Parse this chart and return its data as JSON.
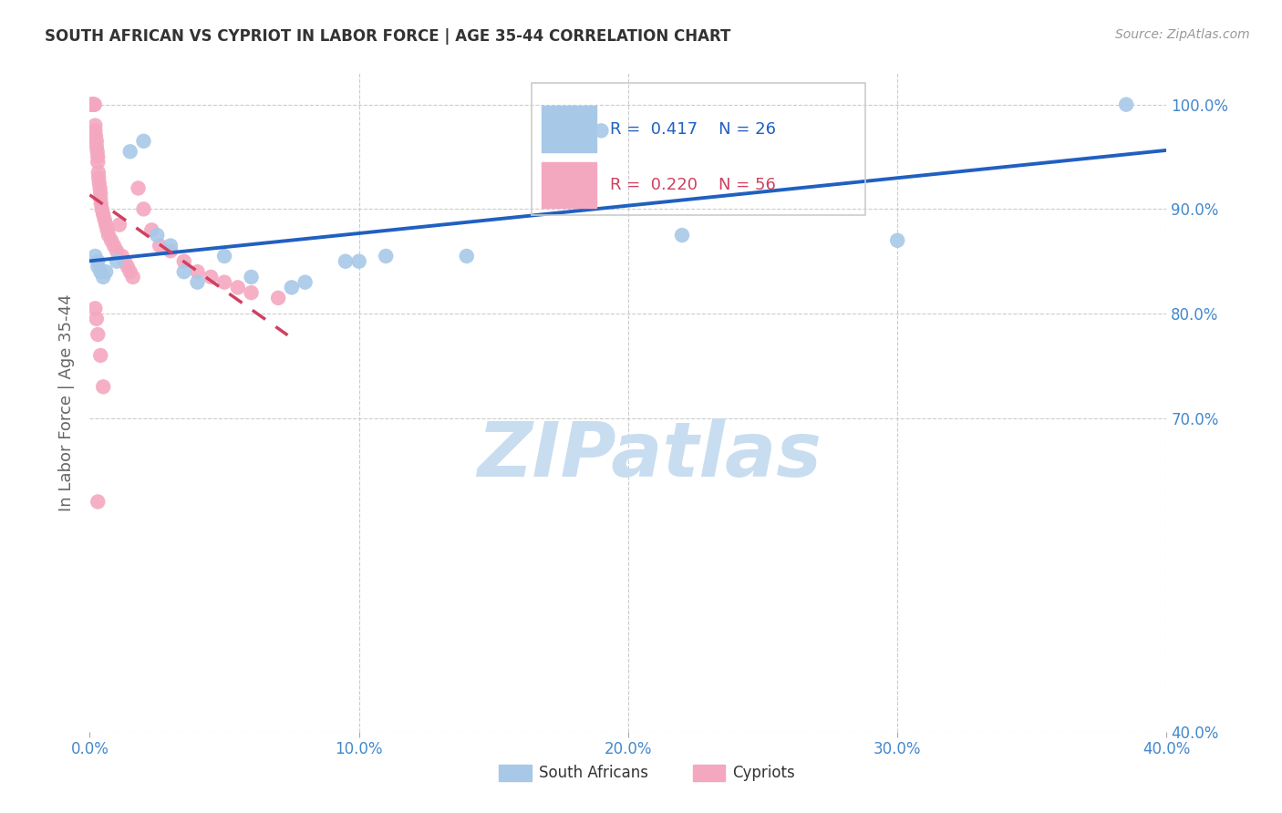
{
  "title": "SOUTH AFRICAN VS CYPRIOT IN LABOR FORCE | AGE 35-44 CORRELATION CHART",
  "source": "Source: ZipAtlas.com",
  "ylabel": "In Labor Force | Age 35-44",
  "legend_blue_r": "0.417",
  "legend_blue_n": "26",
  "legend_pink_r": "0.220",
  "legend_pink_n": "56",
  "xlim": [
    0.0,
    40.0
  ],
  "ylim": [
    40.0,
    103.0
  ],
  "xtick_vals": [
    0.0,
    10.0,
    20.0,
    30.0,
    40.0
  ],
  "ytick_right_vals": [
    100.0,
    90.0,
    80.0,
    70.0,
    40.0
  ],
  "blue_scatter_color": "#a8c8e8",
  "pink_scatter_color": "#f4a8c0",
  "blue_line_color": "#2060c0",
  "pink_line_color": "#d04060",
  "tick_color": "#4488cc",
  "watermark_color": "#c8ddf0",
  "sa_x": [
    0.2,
    0.3,
    0.3,
    0.4,
    0.5,
    0.6,
    1.0,
    1.5,
    2.0,
    2.5,
    3.0,
    3.5,
    4.0,
    5.0,
    6.0,
    7.5,
    8.0,
    9.5,
    10.0,
    11.0,
    14.0,
    17.5,
    19.0,
    22.0,
    30.0,
    38.5
  ],
  "sa_y": [
    85.5,
    84.5,
    85.0,
    84.0,
    83.5,
    84.0,
    85.0,
    95.5,
    96.5,
    87.5,
    86.5,
    84.0,
    83.0,
    85.5,
    83.5,
    82.5,
    83.0,
    85.0,
    85.0,
    85.5,
    85.5,
    96.5,
    97.5,
    87.5,
    87.0,
    100.0
  ],
  "cy_x": [
    0.05,
    0.08,
    0.1,
    0.12,
    0.13,
    0.15,
    0.15,
    0.18,
    0.2,
    0.2,
    0.22,
    0.25,
    0.25,
    0.28,
    0.3,
    0.3,
    0.32,
    0.33,
    0.35,
    0.38,
    0.4,
    0.4,
    0.42,
    0.45,
    0.5,
    0.55,
    0.6,
    0.65,
    0.7,
    0.8,
    0.9,
    1.0,
    1.1,
    1.2,
    1.3,
    1.4,
    1.5,
    1.6,
    1.8,
    2.0,
    2.3,
    2.6,
    3.0,
    3.5,
    4.0,
    4.5,
    5.0,
    5.5,
    6.0,
    7.0,
    0.2,
    0.25,
    0.3,
    0.4,
    0.5,
    0.3
  ],
  "cy_y": [
    100.0,
    100.0,
    100.0,
    100.0,
    100.0,
    100.0,
    100.0,
    100.0,
    98.0,
    97.5,
    97.0,
    96.5,
    96.0,
    95.5,
    95.0,
    94.5,
    93.5,
    93.0,
    92.5,
    92.0,
    91.5,
    91.0,
    90.5,
    90.0,
    89.5,
    89.0,
    88.5,
    88.0,
    87.5,
    87.0,
    86.5,
    86.0,
    88.5,
    85.5,
    85.0,
    84.5,
    84.0,
    83.5,
    92.0,
    90.0,
    88.0,
    86.5,
    86.0,
    85.0,
    84.0,
    83.5,
    83.0,
    82.5,
    82.0,
    81.5,
    80.5,
    79.5,
    78.0,
    76.0,
    73.0,
    62.0
  ]
}
